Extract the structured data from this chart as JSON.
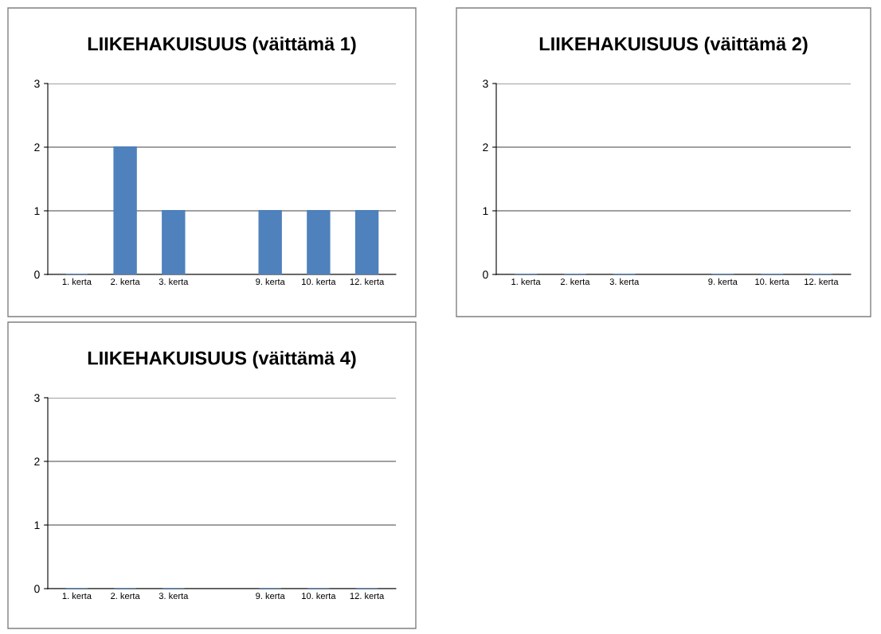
{
  "chart_data": [
    {
      "type": "bar",
      "title": "LIIKEHAKUISUUS (väittämä 1)",
      "categories": [
        "1. kerta",
        "2. kerta",
        "3. kerta",
        null,
        "9. kerta",
        "10. kerta",
        "12. kerta"
      ],
      "values": [
        0,
        2,
        1,
        null,
        1,
        1,
        1
      ],
      "color": "#4f81bd",
      "ylim": [
        0,
        3
      ],
      "yticks": [
        0,
        1,
        2,
        3
      ],
      "grid": "y",
      "legend": false
    },
    {
      "type": "bar",
      "title": "LIIKEHAKUISUUS (väittämä 2)",
      "categories": [
        "1. kerta",
        "2. kerta",
        "3. kerta",
        null,
        "9. kerta",
        "10. kerta",
        "12. kerta"
      ],
      "values": [
        0,
        0,
        0,
        null,
        0,
        0,
        0
      ],
      "color": "#4f81bd",
      "ylim": [
        0,
        3
      ],
      "yticks": [
        0,
        1,
        2,
        3
      ],
      "grid": "y",
      "legend": false
    },
    {
      "type": "bar",
      "title": "LIIKEHAKUISUUS (väittämä 4)",
      "categories": [
        "1. kerta",
        "2. kerta",
        "3. kerta",
        null,
        "9. kerta",
        "10. kerta",
        "12. kerta"
      ],
      "values": [
        0,
        0,
        0,
        null,
        0,
        0,
        0
      ],
      "color": "#4f81bd",
      "ylim": [
        0,
        3
      ],
      "yticks": [
        0,
        1,
        2,
        3
      ],
      "grid": "y",
      "legend": false
    }
  ]
}
